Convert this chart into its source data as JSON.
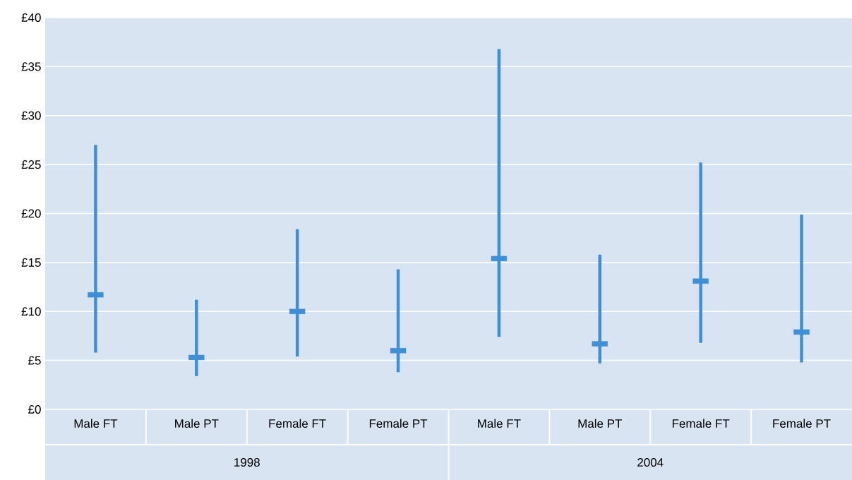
{
  "chart_data": {
    "type": "bar",
    "categories": [
      "Male FT",
      "Male PT",
      "Female FT",
      "Female PT",
      "Male FT",
      "Male PT",
      "Female FT",
      "Female PT"
    ],
    "series": [
      {
        "color": "#3f8fd6",
        "base": [
          5.8,
          3.4,
          5.4,
          3.8,
          7.4,
          4.7,
          6.8,
          4.8
        ],
        "values": [
          21.2,
          7.8,
          13.0,
          10.5,
          29.4,
          11.1,
          18.4,
          15.1
        ]
      },
      {
        "type": "scatter",
        "color": "#3f8fd6",
        "marker": "square",
        "values": [
          11.7,
          5.3,
          10.0,
          6.0,
          15.4,
          6.7,
          13.1,
          7.9
        ]
      }
    ],
    "ylim": [
      0,
      40
    ],
    "yticks": [
      {
        "value": 0,
        "label": "£0"
      },
      {
        "value": 5,
        "label": "£5"
      },
      {
        "value": 10,
        "label": "£10"
      },
      {
        "value": 15,
        "label": "£15"
      },
      {
        "value": 20,
        "label": "£20"
      },
      {
        "value": 25,
        "label": "£25"
      },
      {
        "value": 30,
        "label": "£30"
      },
      {
        "value": 35,
        "label": "£35"
      },
      {
        "value": 40,
        "label": "£40"
      }
    ],
    "grid": "y",
    "annotations": [
      "1998",
      "2004"
    ]
  }
}
